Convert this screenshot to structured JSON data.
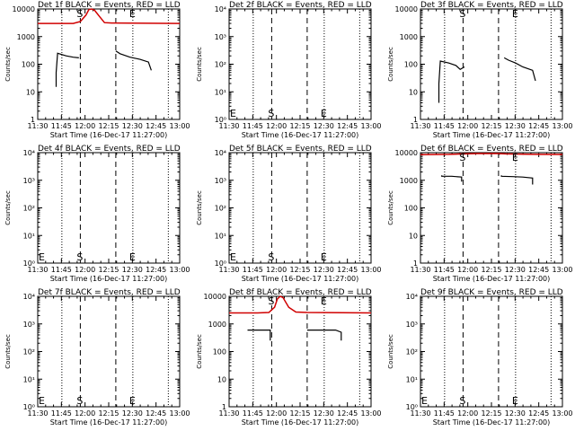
{
  "colors": {
    "events": "#000000",
    "lld": "#d00000",
    "axis": "#000000",
    "background": "#ffffff"
  },
  "xtick_labels": [
    "11:30",
    "11:45",
    "12:00",
    "12:15",
    "12:30",
    "12:45",
    "13:00"
  ],
  "x_label": "Start Time (16-Dec-17 11:27:00)",
  "y_label": "Counts/sec",
  "chart_data": [
    {
      "id": "det1",
      "type": "line",
      "title": "Det 1f BLACK = Events, RED = LLD",
      "xlim": [
        0,
        100
      ],
      "ylim": [
        1,
        10000
      ],
      "yscale": "log",
      "ytick_labels": [
        "1",
        "10",
        "100",
        "1000",
        "10000"
      ],
      "vlines_dotted": [
        17,
        67,
        92
      ],
      "vlines_dashed": [
        30,
        55
      ],
      "markers": [
        {
          "text": "S",
          "x": 30,
          "y": 10000
        },
        {
          "text": "E",
          "x": 67,
          "y": 10000
        }
      ],
      "series": [
        {
          "name": "Events",
          "color": "black",
          "segments": [
            [
              [
                13,
                15
              ],
              [
                13,
                50
              ],
              [
                14,
                250
              ],
              [
                20,
                200
              ],
              [
                25,
                180
              ],
              [
                29,
                170
              ]
            ],
            [
              [
                55,
                300
              ],
              [
                58,
                240
              ],
              [
                65,
                180
              ],
              [
                72,
                150
              ],
              [
                78,
                120
              ],
              [
                80,
                60
              ]
            ]
          ]
        },
        {
          "name": "LLD",
          "color": "red",
          "segments": [
            [
              [
                0,
                3000
              ],
              [
                15,
                3000
              ],
              [
                25,
                3000
              ],
              [
                30,
                3500
              ],
              [
                34,
                6000
              ],
              [
                36,
                9500
              ],
              [
                38,
                11000
              ],
              [
                40,
                9000
              ],
              [
                44,
                5000
              ],
              [
                47,
                3200
              ],
              [
                52,
                3100
              ],
              [
                100,
                3000
              ]
            ]
          ]
        }
      ]
    },
    {
      "id": "det2",
      "type": "line",
      "title": "Det 2f BLACK = Events, RED = LLD",
      "xlim": [
        0,
        100
      ],
      "ylim": [
        1,
        10000
      ],
      "yscale": "log",
      "ytick_labels": [
        "10⁰",
        "10¹",
        "10²",
        "10³",
        "10⁴"
      ],
      "vlines_dotted": [
        0,
        17,
        67,
        92
      ],
      "vlines_dashed": [
        30,
        55
      ],
      "markers": [
        {
          "text": "E",
          "x": 0,
          "y": 1.4
        },
        {
          "text": "S",
          "x": 30,
          "y": 1.4
        },
        {
          "text": "E",
          "x": 67,
          "y": 1.4
        }
      ],
      "series": []
    },
    {
      "id": "det3",
      "type": "line",
      "title": "Det 3f BLACK = Events, RED = LLD",
      "xlim": [
        0,
        100
      ],
      "ylim": [
        1,
        10000
      ],
      "yscale": "log",
      "ytick_labels": [
        "1",
        "10",
        "100",
        "1000",
        "10000"
      ],
      "vlines_dotted": [
        17,
        67,
        92
      ],
      "vlines_dashed": [
        30,
        55
      ],
      "markers": [
        {
          "text": "S",
          "x": 30,
          "y": 10000
        },
        {
          "text": "E",
          "x": 67,
          "y": 10000
        }
      ],
      "series": [
        {
          "name": "Events",
          "color": "black",
          "segments": [
            [
              [
                13,
                4
              ],
              [
                13,
                20
              ],
              [
                14,
                130
              ],
              [
                20,
                110
              ],
              [
                25,
                90
              ],
              [
                28,
                65
              ],
              [
                31,
                80
              ]
            ],
            [
              [
                59,
                170
              ],
              [
                62,
                140
              ],
              [
                67,
                110
              ],
              [
                72,
                80
              ],
              [
                79,
                60
              ],
              [
                81,
                25
              ]
            ]
          ]
        }
      ]
    },
    {
      "id": "det4",
      "type": "line",
      "title": "Det 4f BLACK = Events, RED = LLD",
      "xlim": [
        0,
        100
      ],
      "ylim": [
        1,
        10000
      ],
      "yscale": "log",
      "ytick_labels": [
        "10⁰",
        "10¹",
        "10²",
        "10³",
        "10⁴"
      ],
      "vlines_dotted": [
        0,
        17,
        67,
        92
      ],
      "vlines_dashed": [
        30,
        55
      ],
      "markers": [
        {
          "text": "E",
          "x": 0,
          "y": 1.4
        },
        {
          "text": "S",
          "x": 30,
          "y": 1.4
        },
        {
          "text": "E",
          "x": 67,
          "y": 1.4
        }
      ],
      "series": []
    },
    {
      "id": "det5",
      "type": "line",
      "title": "Det 5f BLACK = Events, RED = LLD",
      "xlim": [
        0,
        100
      ],
      "ylim": [
        1,
        10000
      ],
      "yscale": "log",
      "ytick_labels": [
        "10⁰",
        "10¹",
        "10²",
        "10³",
        "10⁴"
      ],
      "vlines_dotted": [
        0,
        17,
        67,
        92
      ],
      "vlines_dashed": [
        30,
        55
      ],
      "markers": [
        {
          "text": "E",
          "x": 0,
          "y": 1.4
        },
        {
          "text": "S",
          "x": 30,
          "y": 1.4
        },
        {
          "text": "E",
          "x": 67,
          "y": 1.4
        }
      ],
      "series": []
    },
    {
      "id": "det6",
      "type": "line",
      "title": "Det 6f BLACK = Events, RED = LLD",
      "xlim": [
        0,
        100
      ],
      "ylim": [
        1,
        10000
      ],
      "yscale": "log",
      "ytick_labels": [
        "1",
        "10",
        "100",
        "1000",
        "10000"
      ],
      "vlines_dotted": [
        17,
        67,
        92
      ],
      "vlines_dashed": [
        30,
        55
      ],
      "markers": [
        {
          "text": "S",
          "x": 30,
          "y": 10000
        },
        {
          "text": "E",
          "x": 67,
          "y": 10000
        }
      ],
      "series": [
        {
          "name": "Events",
          "color": "black",
          "segments": [
            [
              [
                15,
                1500
              ],
              [
                15,
                1400
              ],
              [
                22,
                1400
              ],
              [
                29,
                1300
              ],
              [
                29,
                900
              ]
            ],
            [
              [
                57,
                1500
              ],
              [
                57,
                1400
              ],
              [
                65,
                1350
              ],
              [
                72,
                1300
              ],
              [
                79,
                1200
              ],
              [
                79,
                700
              ]
            ]
          ]
        },
        {
          "name": "LLD",
          "color": "red",
          "segments": [
            [
              [
                0,
                8500
              ],
              [
                20,
                8700
              ],
              [
                30,
                9000
              ],
              [
                40,
                9300
              ],
              [
                55,
                9300
              ],
              [
                60,
                9000
              ],
              [
                80,
                8700
              ],
              [
                100,
                8600
              ]
            ]
          ]
        }
      ]
    },
    {
      "id": "det7",
      "type": "line",
      "title": "Det 7f BLACK = Events, RED = LLD",
      "xlim": [
        0,
        100
      ],
      "ylim": [
        1,
        10000
      ],
      "yscale": "log",
      "ytick_labels": [
        "10⁰",
        "10¹",
        "10²",
        "10³",
        "10⁴"
      ],
      "vlines_dotted": [
        0,
        17,
        67,
        92
      ],
      "vlines_dashed": [
        30,
        55
      ],
      "markers": [
        {
          "text": "E",
          "x": 0,
          "y": 1.4
        },
        {
          "text": "S",
          "x": 30,
          "y": 1.4
        },
        {
          "text": "E",
          "x": 67,
          "y": 1.4
        }
      ],
      "series": []
    },
    {
      "id": "det8",
      "type": "line",
      "title": "Det 8f BLACK = Events, RED = LLD",
      "xlim": [
        0,
        100
      ],
      "ylim": [
        1,
        10000
      ],
      "yscale": "log",
      "ytick_labels": [
        "1",
        "10",
        "100",
        "1000",
        "10000"
      ],
      "vlines_dotted": [
        17,
        67,
        92
      ],
      "vlines_dashed": [
        30,
        55
      ],
      "markers": [
        {
          "text": "S",
          "x": 30,
          "y": 10000
        },
        {
          "text": "E",
          "x": 67,
          "y": 10000
        }
      ],
      "series": [
        {
          "name": "Events",
          "color": "black",
          "segments": [
            [
              [
                13,
                600
              ],
              [
                20,
                600
              ],
              [
                29,
                600
              ],
              [
                29,
                250
              ]
            ],
            [
              [
                55,
                600
              ],
              [
                65,
                600
              ],
              [
                75,
                600
              ],
              [
                79,
                500
              ],
              [
                79,
                250
              ]
            ]
          ]
        },
        {
          "name": "LLD",
          "color": "red",
          "segments": [
            [
              [
                0,
                2500
              ],
              [
                20,
                2500
              ],
              [
                28,
                2600
              ],
              [
                32,
                4000
              ],
              [
                34,
                8000
              ],
              [
                36,
                11000
              ],
              [
                38,
                9000
              ],
              [
                42,
                4000
              ],
              [
                47,
                2700
              ],
              [
                55,
                2600
              ],
              [
                100,
                2500
              ]
            ]
          ]
        }
      ]
    },
    {
      "id": "det9",
      "type": "line",
      "title": "Det 9f BLACK = Events, RED = LLD",
      "xlim": [
        0,
        100
      ],
      "ylim": [
        1,
        10000
      ],
      "yscale": "log",
      "ytick_labels": [
        "10⁰",
        "10¹",
        "10²",
        "10³",
        "10⁴"
      ],
      "vlines_dotted": [
        0,
        17,
        67,
        92
      ],
      "vlines_dashed": [
        30,
        55
      ],
      "markers": [
        {
          "text": "E",
          "x": 0,
          "y": 1.4
        },
        {
          "text": "S",
          "x": 30,
          "y": 1.4
        },
        {
          "text": "E",
          "x": 67,
          "y": 1.4
        }
      ],
      "series": []
    }
  ]
}
